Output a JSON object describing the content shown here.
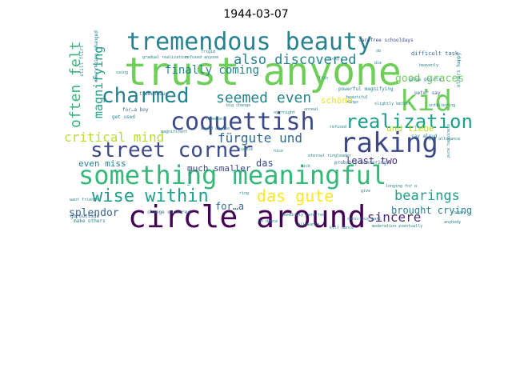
{
  "title": "1944-03-07",
  "palette": {
    "yellow": "#fde725",
    "lime": "#b5de2b",
    "light_green": "#6ece58",
    "green": "#35b779",
    "teal_green": "#1f9e89",
    "teal": "#26828e",
    "blue": "#31688e",
    "indigo": "#3e4989",
    "purple": "#482878",
    "dark_purple": "#440154",
    "lavender": "#5a4a8c",
    "pale_yellow": "#e3e418"
  },
  "words": [
    {
      "text": "trust anyone",
      "color": "light_green"
    },
    {
      "text": "circle around",
      "color": "dark_purple"
    },
    {
      "text": "something meaningful",
      "color": "green"
    },
    {
      "text": "tremendous beauty",
      "color": "teal"
    },
    {
      "text": "coquettish",
      "color": "indigo"
    },
    {
      "text": "raking",
      "color": "indigo"
    },
    {
      "text": "kid",
      "color": "light_green"
    },
    {
      "text": "street corner",
      "color": "indigo"
    },
    {
      "text": "charmed",
      "color": "teal"
    },
    {
      "text": "realization",
      "color": "teal_green"
    },
    {
      "text": "wise within",
      "color": "teal_green"
    },
    {
      "text": "das gute",
      "color": "yellow"
    },
    {
      "text": "critical mind",
      "color": "lime"
    },
    {
      "text": "seemed even",
      "color": "teal"
    },
    {
      "text": "also discovered",
      "color": "teal"
    },
    {
      "text": "fürgute und",
      "color": "blue"
    },
    {
      "text": "often felt",
      "color": "green"
    },
    {
      "text": "magnifying",
      "color": "teal_green"
    },
    {
      "text": "bearings",
      "color": "teal_green"
    },
    {
      "text": "finally coming",
      "color": "teal"
    },
    {
      "text": "sincere",
      "color": "purple"
    },
    {
      "text": "good graces",
      "color": "light_green"
    },
    {
      "text": "splendor",
      "color": "blue"
    },
    {
      "text": "even miss",
      "color": "teal"
    },
    {
      "text": "brought crying",
      "color": "teal"
    },
    {
      "text": "much smaller",
      "color": "indigo"
    },
    {
      "text": "least two",
      "color": "purple"
    },
    {
      "text": "for…a",
      "color": "blue"
    },
    {
      "text": "und liebe",
      "color": "lime"
    },
    {
      "text": "schöne",
      "color": "pale_yellow"
    },
    {
      "text": "das",
      "color": "indigo"
    },
    {
      "text": "difficult task",
      "color": "blue"
    },
    {
      "text": "carefree schooldays",
      "color": "indigo"
    },
    {
      "text": "peter say",
      "color": "blue"
    },
    {
      "text": "plus points",
      "color": "teal"
    },
    {
      "text": "powerful magnifying",
      "color": "teal"
    },
    {
      "text": "say aloud",
      "color": "teal"
    },
    {
      "text": "tremendous",
      "color": "blue"
    },
    {
      "text": "go outside",
      "color": "blue"
    },
    {
      "text": "make others",
      "color": "teal"
    },
    {
      "text": "get used",
      "color": "teal"
    },
    {
      "text": "for…a boy",
      "color": "blue"
    },
    {
      "text": "change occurred",
      "color": "blue"
    },
    {
      "text": "probably wondering",
      "color": "blue"
    },
    {
      "text": "still flirt",
      "color": "teal"
    },
    {
      "text": "everything changed",
      "color": "teal"
    },
    {
      "text": "saing",
      "color": "teal"
    },
    {
      "text": "gradual realization",
      "color": "teal"
    },
    {
      "text": "refused anyone",
      "color": "teal"
    },
    {
      "text": "others happy",
      "color": "teal"
    },
    {
      "text": "pure happiness",
      "color": "teal"
    },
    {
      "text": "big allowance",
      "color": "teal"
    },
    {
      "text": "happy",
      "color": "teal"
    },
    {
      "text": "beautiful",
      "color": "teal"
    },
    {
      "text": "slightly better",
      "color": "teal"
    },
    {
      "text": "big change",
      "color": "teal"
    },
    {
      "text": "give",
      "color": "teal"
    },
    {
      "text": "want friends",
      "color": "teal"
    },
    {
      "text": "seemingly carefree",
      "color": "teal"
    },
    {
      "text": "kill dance",
      "color": "teal"
    },
    {
      "text": "moderation eventually",
      "color": "teal"
    },
    {
      "text": "allowance",
      "color": "teal"
    },
    {
      "text": "eternal ringleader",
      "color": "teal"
    },
    {
      "text": "facing",
      "color": "teal"
    },
    {
      "text": "refused",
      "color": "teal"
    },
    {
      "text": "unreal",
      "color": "teal"
    },
    {
      "text": "heavenly",
      "color": "teal"
    },
    {
      "text": "overnight",
      "color": "teal"
    },
    {
      "text": "no dance",
      "color": "teal"
    },
    {
      "text": "conscious part",
      "color": "teal"
    },
    {
      "text": "anybody",
      "color": "teal"
    },
    {
      "text": "fish",
      "color": "teal"
    },
    {
      "text": "frigid",
      "color": "teal"
    },
    {
      "text": "rings",
      "color": "teal"
    },
    {
      "text": "magnificent",
      "color": "teal"
    },
    {
      "text": "ob",
      "color": "teal"
    },
    {
      "text": "would anyone",
      "color": "teal"
    },
    {
      "text": "remember",
      "color": "teal"
    },
    {
      "text": "longing for a",
      "color": "teal"
    },
    {
      "text": "jumble",
      "color": "teal"
    },
    {
      "text": "nice",
      "color": "teal"
    },
    {
      "text": "unfaltering",
      "color": "teal"
    },
    {
      "text": "sick",
      "color": "teal"
    },
    {
      "text": "ring",
      "color": "teal"
    },
    {
      "text": "die",
      "color": "teal"
    },
    {
      "text": "tricky",
      "color": "teal"
    }
  ]
}
